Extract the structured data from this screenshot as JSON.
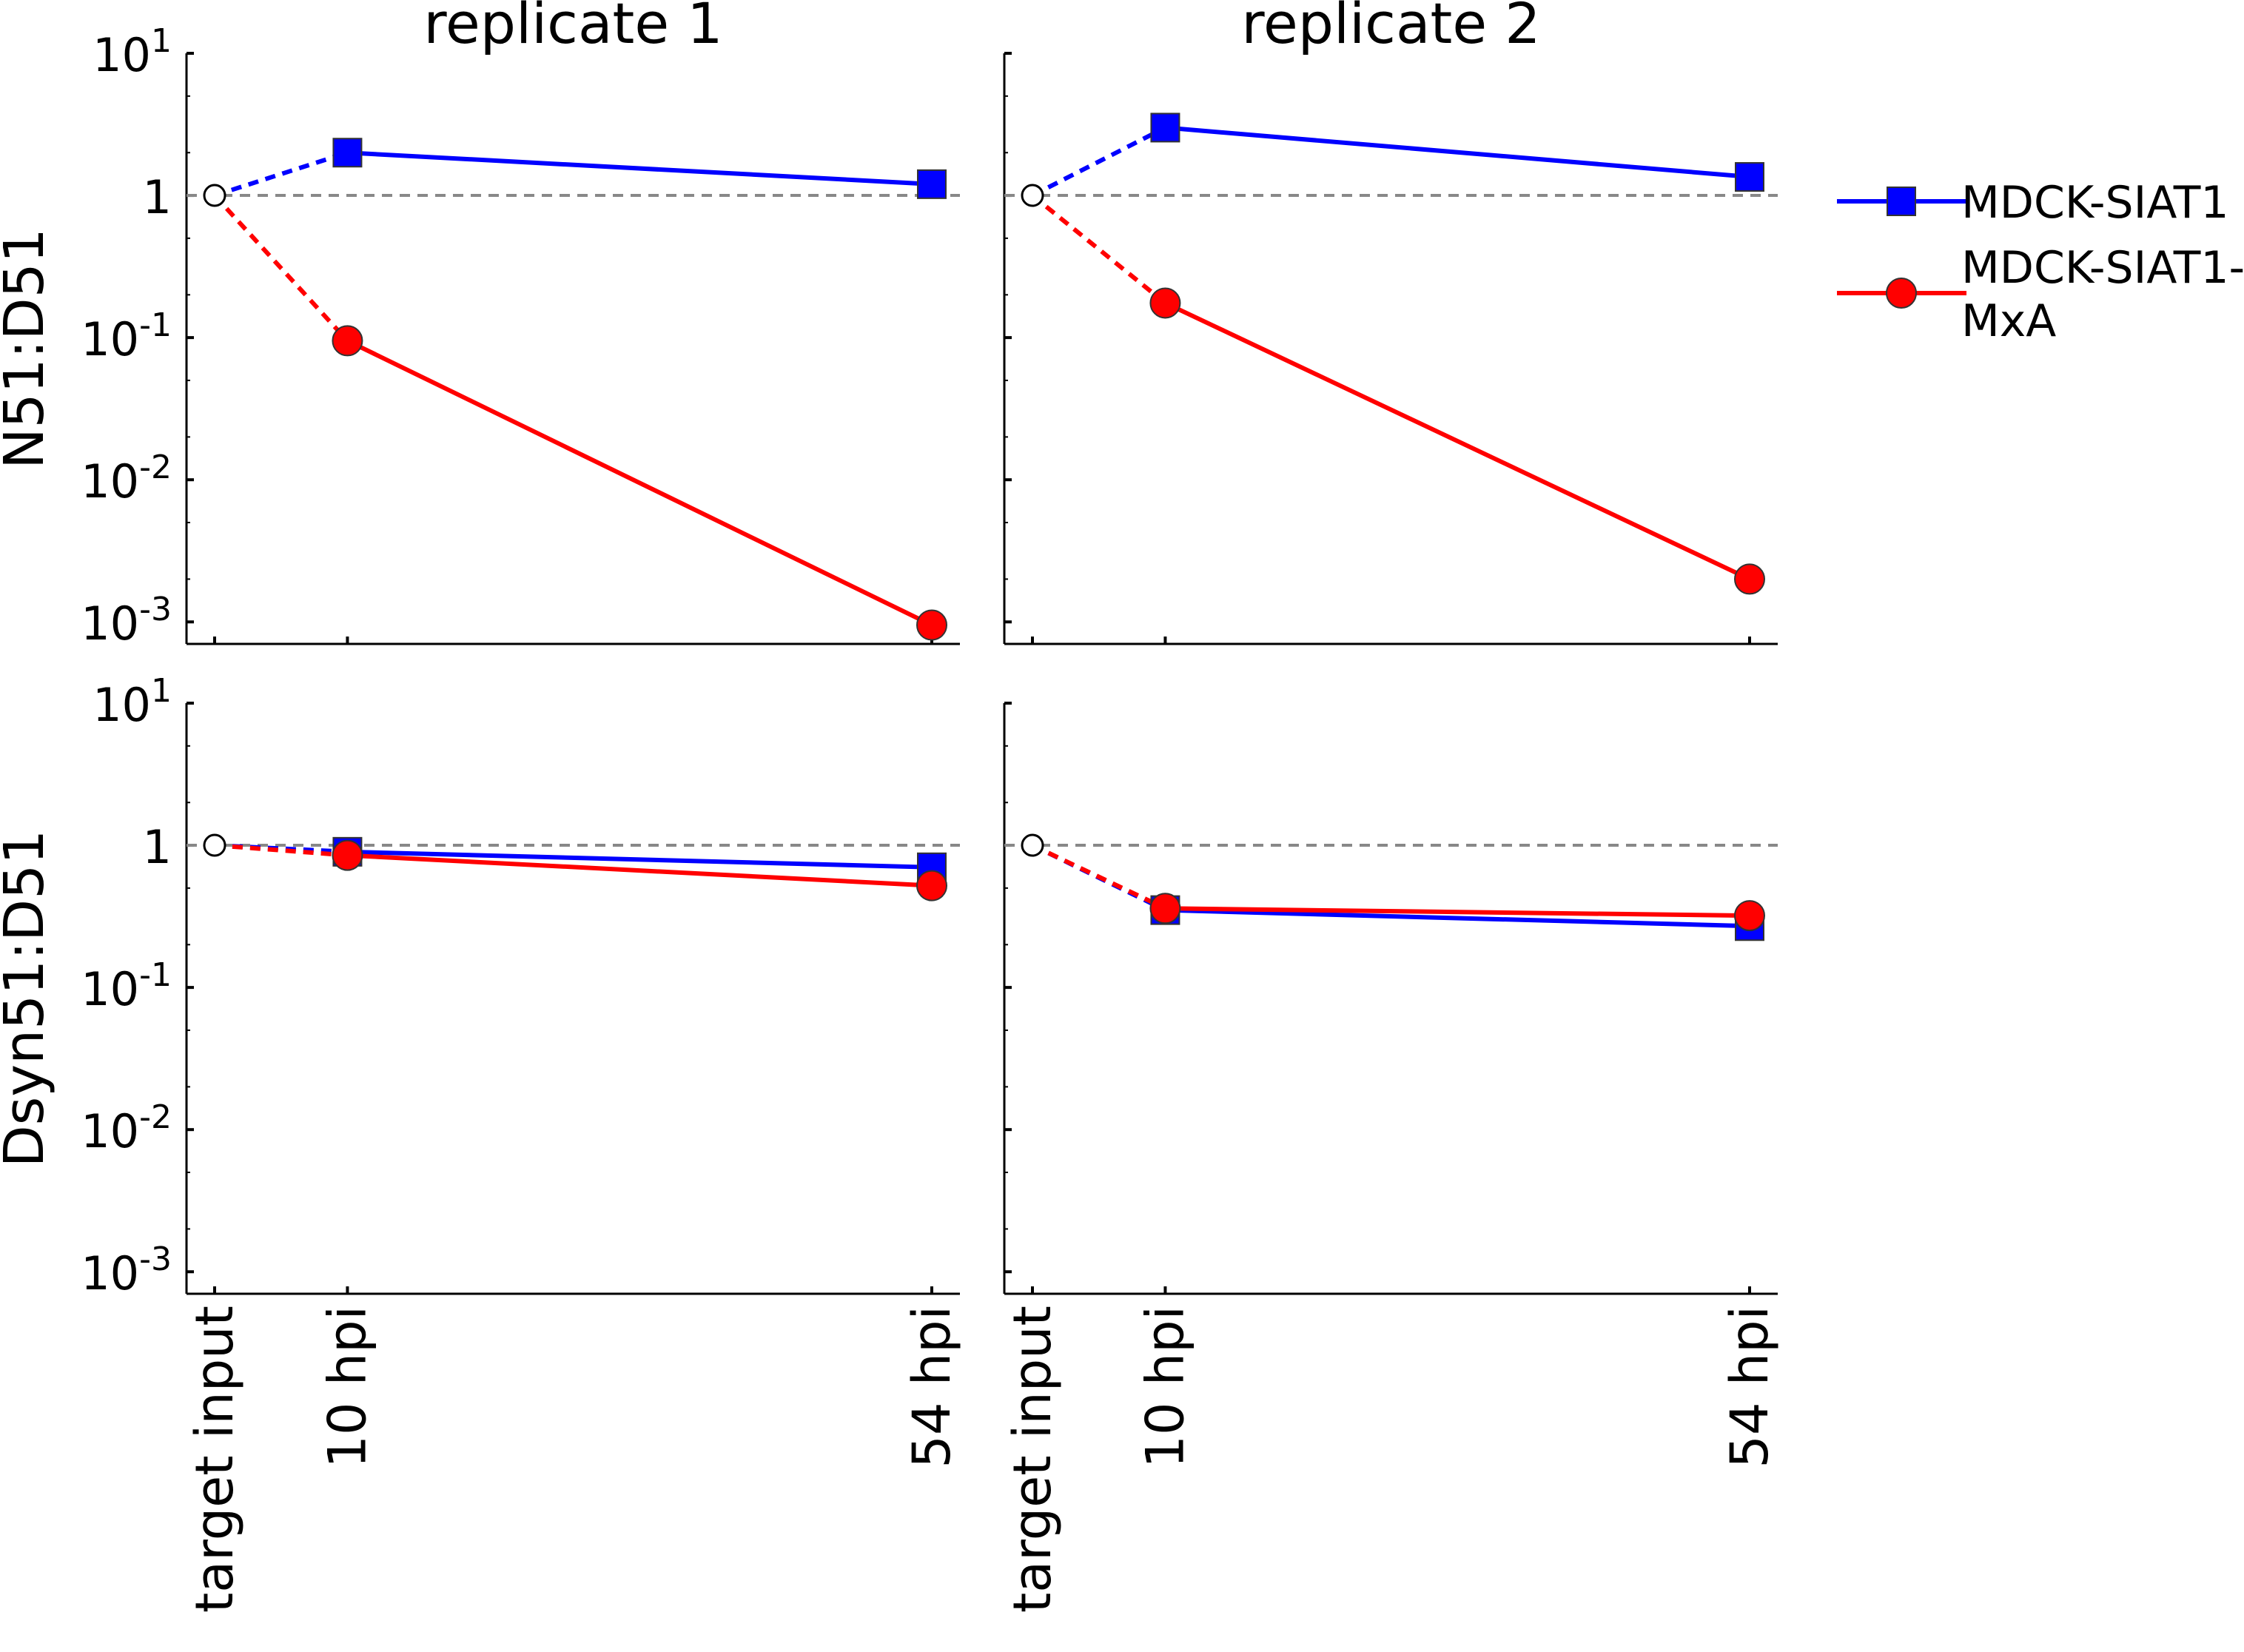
{
  "legend": {
    "placement": "right",
    "items": [
      {
        "label": "MDCK-SIAT1",
        "color": "#0000ff",
        "marker": "square"
      },
      {
        "label_lines": [
          "MDCK-SIAT1-",
          "MxA"
        ],
        "color": "#ff0000",
        "marker": "circle"
      }
    ]
  },
  "rows": [
    {
      "ylabel": "N51:D51"
    },
    {
      "ylabel": "Dsyn51:D51"
    }
  ],
  "columns": [
    {
      "title": "replicate 1"
    },
    {
      "title": "replicate 2"
    }
  ],
  "chart_data": [
    {
      "type": "line",
      "title": "replicate 1",
      "ylabel": "N51:D51",
      "xlabel": "",
      "categories": [
        "target input",
        "10 hpi",
        "54 hpi"
      ],
      "x": [
        0,
        10,
        54
      ],
      "yscale": "log",
      "ylim": [
        0.0007,
        10
      ],
      "yticks": [
        0.001,
        0.01,
        0.1,
        1,
        10
      ],
      "yticklabels": [
        "10^-3",
        "10^-2",
        "10^-1",
        "1",
        "10^1"
      ],
      "reference_line": 1,
      "start_value": 1,
      "grid": false,
      "series": [
        {
          "name": "MDCK-SIAT1",
          "color": "#0000ff",
          "marker": "square",
          "values": [
            1,
            2.0,
            1.2
          ]
        },
        {
          "name": "MDCK-SIAT1-MxA",
          "color": "#ff0000",
          "marker": "circle",
          "values": [
            1,
            0.095,
            0.00095
          ]
        }
      ]
    },
    {
      "type": "line",
      "title": "replicate 2",
      "ylabel": "N51:D51",
      "xlabel": "",
      "categories": [
        "target input",
        "10 hpi",
        "54 hpi"
      ],
      "x": [
        0,
        10,
        54
      ],
      "yscale": "log",
      "ylim": [
        0.0007,
        10
      ],
      "yticks": [
        0.001,
        0.01,
        0.1,
        1,
        10
      ],
      "yticklabels": [
        "10^-3",
        "10^-2",
        "10^-1",
        "1",
        "10^1"
      ],
      "reference_line": 1,
      "start_value": 1,
      "grid": false,
      "series": [
        {
          "name": "MDCK-SIAT1",
          "color": "#0000ff",
          "marker": "square",
          "values": [
            1,
            3.0,
            1.35
          ]
        },
        {
          "name": "MDCK-SIAT1-MxA",
          "color": "#ff0000",
          "marker": "circle",
          "values": [
            1,
            0.175,
            0.002
          ]
        }
      ]
    },
    {
      "type": "line",
      "title": "replicate 1",
      "ylabel": "Dsyn51:D51",
      "xlabel": "",
      "categories": [
        "target input",
        "10 hpi",
        "54 hpi"
      ],
      "x": [
        0,
        10,
        54
      ],
      "yscale": "log",
      "ylim": [
        0.0007,
        10
      ],
      "yticks": [
        0.001,
        0.01,
        0.1,
        1,
        10
      ],
      "yticklabels": [
        "10^-3",
        "10^-2",
        "10^-1",
        "1",
        "10^1"
      ],
      "reference_line": 1,
      "start_value": 1,
      "grid": false,
      "series": [
        {
          "name": "MDCK-SIAT1",
          "color": "#0000ff",
          "marker": "square",
          "values": [
            1,
            0.9,
            0.7
          ]
        },
        {
          "name": "MDCK-SIAT1-MxA",
          "color": "#ff0000",
          "marker": "circle",
          "values": [
            1,
            0.85,
            0.52
          ]
        }
      ]
    },
    {
      "type": "line",
      "title": "replicate 2",
      "ylabel": "Dsyn51:D51",
      "xlabel": "",
      "categories": [
        "target input",
        "10 hpi",
        "54 hpi"
      ],
      "x": [
        0,
        10,
        54
      ],
      "yscale": "log",
      "ylim": [
        0.0007,
        10
      ],
      "yticks": [
        0.001,
        0.01,
        0.1,
        1,
        10
      ],
      "yticklabels": [
        "10^-3",
        "10^-2",
        "10^-1",
        "1",
        "10^1"
      ],
      "reference_line": 1,
      "start_value": 1,
      "grid": false,
      "series": [
        {
          "name": "MDCK-SIAT1",
          "color": "#0000ff",
          "marker": "square",
          "values": [
            1,
            0.35,
            0.27
          ]
        },
        {
          "name": "MDCK-SIAT1-MxA",
          "color": "#ff0000",
          "marker": "circle",
          "values": [
            1,
            0.36,
            0.32
          ]
        }
      ]
    }
  ]
}
